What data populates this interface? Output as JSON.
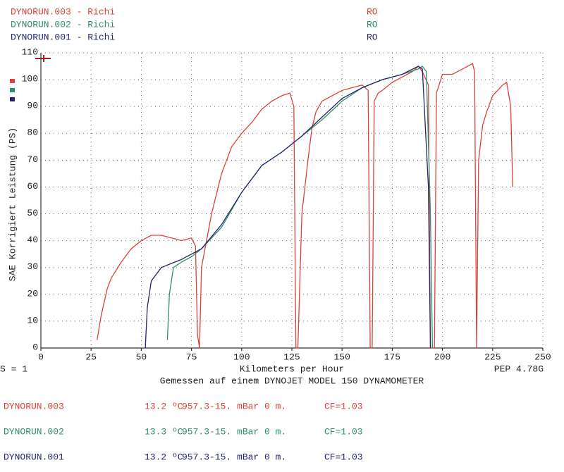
{
  "chart_data": {
    "type": "line",
    "x_label": "Kilometers per Hour",
    "y_label": "SAE Korrigiert Leistung (PS)",
    "scale_note": "S = 1",
    "version": "PEP 4.78G",
    "footer": "Gemessen auf einem DYNOJET MODEL 150 DYNAMOMETER",
    "xlim": [
      0,
      250
    ],
    "xticks": [
      0,
      25,
      50,
      75,
      100,
      125,
      150,
      175,
      200,
      225,
      250
    ],
    "ylim": [
      0,
      110
    ],
    "yticks": [
      0,
      10,
      20,
      30,
      40,
      50,
      60,
      70,
      80,
      90,
      100,
      110
    ],
    "grid": true,
    "series": [
      {
        "name": "DYNORUN.003 - Richi",
        "tag": "RO",
        "color": "#d9443c",
        "x": [
          28,
          30,
          33,
          35,
          40,
          45,
          50,
          55,
          60,
          65,
          70,
          75,
          77,
          78,
          79,
          80,
          82,
          85,
          90,
          95,
          100,
          105,
          110,
          115,
          120,
          124,
          126,
          127,
          128,
          130,
          133,
          135,
          137,
          140,
          145,
          150,
          155,
          160,
          163,
          164,
          165,
          166,
          168,
          170,
          175,
          180,
          185,
          188,
          190,
          193,
          194,
          196,
          197,
          200,
          205,
          210,
          215,
          216,
          217,
          218,
          220,
          222,
          225,
          230,
          232,
          234,
          235
        ],
        "values": [
          3,
          12,
          22,
          26,
          32,
          37,
          40,
          42,
          42,
          41,
          40,
          41,
          38,
          5,
          0,
          30,
          38,
          50,
          65,
          75,
          80,
          84,
          89,
          92,
          94,
          95,
          90,
          0,
          0,
          50,
          70,
          82,
          88,
          92,
          94,
          96,
          97,
          98,
          96,
          0,
          0,
          92,
          95,
          96,
          99,
          101,
          103,
          105,
          103,
          98,
          0,
          0,
          95,
          102,
          102,
          104,
          106,
          103,
          0,
          70,
          83,
          88,
          94,
          98,
          99,
          90,
          60
        ]
      },
      {
        "name": "DYNORUN.002 - Richi",
        "tag": "RO",
        "color": "#2f8f6f",
        "x": [
          63,
          64,
          66,
          70,
          75,
          80,
          90,
          100,
          110,
          120,
          130,
          140,
          150,
          160,
          170,
          180,
          188,
          190,
          192,
          194,
          195
        ],
        "values": [
          3,
          20,
          30,
          32,
          34,
          37,
          45,
          58,
          68,
          73,
          79,
          85,
          92,
          97,
          100,
          102,
          104,
          105,
          103,
          50,
          0
        ]
      },
      {
        "name": "DYNORUN.001 - Richi",
        "tag": "RO",
        "color": "#25256e",
        "x": [
          52,
          53,
          55,
          60,
          70,
          80,
          90,
          100,
          110,
          120,
          130,
          140,
          150,
          160,
          170,
          180,
          188,
          190,
          193,
          194
        ],
        "values": [
          0,
          15,
          25,
          30,
          33,
          37,
          46,
          58,
          68,
          73,
          79,
          86,
          93,
          97,
          100,
          102,
          105,
          104,
          60,
          0
        ]
      }
    ]
  },
  "table": {
    "rows": [
      [
        "DYNORUN.003",
        "13.2 ºC",
        "957.3-15. mBar",
        "0 m.",
        "CF=1.03"
      ],
      [
        "DYNORUN.002",
        "13.3 ºC",
        "957.3-15. mBar",
        "0 m.",
        "CF=1.03"
      ],
      [
        "DYNORUN.001",
        "13.2 ºC",
        "957.3-15. mBar",
        "0 m.",
        "CF=1.03"
      ]
    ]
  }
}
